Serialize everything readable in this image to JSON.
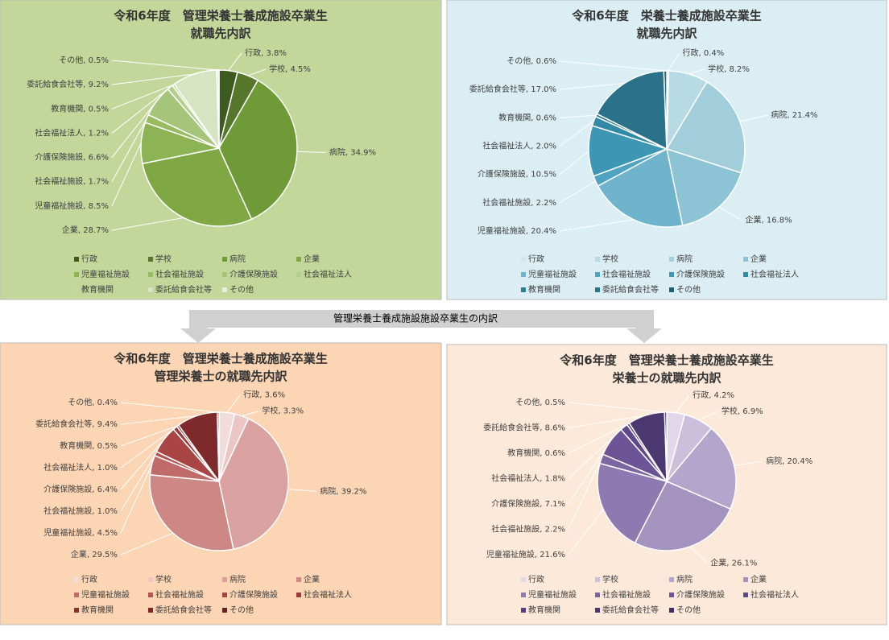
{
  "connector_label": "管理栄養士養成施設施設卒業生の内訳",
  "chart_data": [
    {
      "type": "pie",
      "title": "令和6年度　管理栄養士養成施設卒業生",
      "subtitle": "就職先内訳",
      "background": "#c4d79b",
      "categories": [
        "行政",
        "学校",
        "病院",
        "企業",
        "児童福祉施設",
        "社会福祉施設",
        "介護保険施設",
        "社会福祉法人",
        "教育機関",
        "委託給食会社等",
        "その他"
      ],
      "values": [
        3.8,
        4.5,
        34.9,
        28.7,
        8.5,
        1.7,
        6.6,
        1.2,
        0.5,
        9.2,
        0.5
      ],
      "value_labels": [
        "行政, 3.8%",
        "学校, 4.5%",
        "病院, 34.9%",
        "企業, 28.7%",
        "児童福祉施設, 8.5%",
        "社会福祉施設, 1.7%",
        "介護保険施設, 6.6%",
        "社会福祉法人, 1.2%",
        "教育機関, 0.5%",
        "委託給食会社等, 9.2%",
        "その他, 0.5%"
      ],
      "colors": [
        "#3d5a1f",
        "#56772b",
        "#6f9a38",
        "#7fa845",
        "#8cb455",
        "#98bb60",
        "#a5c57a",
        "#b3cd8d",
        "#c3d8a5",
        "#d6e4c1",
        "#e7efdc"
      ]
    },
    {
      "type": "pie",
      "title": "令和6年度　栄養士養成施設卒業生",
      "subtitle": "就職先内訳",
      "background": "#dbeef3",
      "categories": [
        "行政",
        "学校",
        "病院",
        "企業",
        "児童福祉施設",
        "社会福祉施設",
        "介護保険施設",
        "社会福祉法人",
        "教育機関",
        "委託給食会社等",
        "その他"
      ],
      "values": [
        0.4,
        8.2,
        21.4,
        16.8,
        20.4,
        2.2,
        10.5,
        2.0,
        0.6,
        17.0,
        0.6
      ],
      "value_labels": [
        "行政, 0.4%",
        "学校, 8.2%",
        "病院, 21.4%",
        "企業, 16.8%",
        "児童福祉施設, 20.4%",
        "社会福祉施設, 2.2%",
        "介護保険施設, 10.5%",
        "社会福祉法人, 2.0%",
        "教育機関, 0.6%",
        "委託給食会社等, 17.0%",
        "その他, 0.6%"
      ],
      "colors": [
        "#cfe6ec",
        "#b7dae4",
        "#a2cedc",
        "#8cc3d5",
        "#6fb4cc",
        "#4fa3c0",
        "#3c96b4",
        "#3289a6",
        "#2d7d97",
        "#2b7189",
        "#245f73"
      ]
    },
    {
      "type": "pie",
      "title": "令和6年度　管理栄養士養成施設卒業生",
      "subtitle": "管理栄養士の就職先内訳",
      "background": "#fcd5b4",
      "categories": [
        "行政",
        "学校",
        "病院",
        "企業",
        "児童福祉施設",
        "社会福祉施設",
        "介護保険施設",
        "社会福祉法人",
        "教育機関",
        "委託給食会社等",
        "その他"
      ],
      "values": [
        3.6,
        3.3,
        39.2,
        29.5,
        4.5,
        1.0,
        6.4,
        1.0,
        0.5,
        9.4,
        0.4
      ],
      "value_labels": [
        "行政, 3.6%",
        "学校, 3.3%",
        "病院, 39.2%",
        "企業, 29.5%",
        "児童福祉施設, 4.5%",
        "社会福祉施設, 1.0%",
        "介護保険施設, 6.4%",
        "社会福祉法人, 1.0%",
        "教育機関, 0.5%",
        "委託給食会社等, 9.4%",
        "その他, 0.4%"
      ],
      "colors": [
        "#f2dcdb",
        "#ebc6c5",
        "#d9a1a0",
        "#cd8785",
        "#c06b6a",
        "#b45555",
        "#a94545",
        "#9c3a3a",
        "#8c3131",
        "#7e2a2a",
        "#6b2222"
      ]
    },
    {
      "type": "pie",
      "title": "令和6年度　管理栄養士養成施設卒業生",
      "subtitle": "栄養士の就職先内訳",
      "background": "#fde9d9",
      "categories": [
        "行政",
        "学校",
        "病院",
        "企業",
        "児童福祉施設",
        "社会福祉施設",
        "介護保険施設",
        "社会福祉法人",
        "教育機関",
        "委託給食会社等",
        "その他"
      ],
      "values": [
        4.2,
        6.9,
        20.4,
        26.1,
        21.6,
        2.2,
        7.1,
        1.8,
        0.6,
        8.6,
        0.5
      ],
      "value_labels": [
        "行政, 4.2%",
        "学校, 6.9%",
        "病院, 20.4%",
        "企業, 26.1%",
        "児童福祉施設, 21.6%",
        "社会福祉施設, 2.2%",
        "介護保険施設, 7.1%",
        "社会福祉法人, 1.8%",
        "教育機関, 0.6%",
        "委託給食会社等, 8.6%",
        "その他, 0.5%"
      ],
      "colors": [
        "#e0d8ea",
        "#cbbfdc",
        "#b3a5cb",
        "#a593bf",
        "#8f79b1",
        "#7c65a3",
        "#6c5496",
        "#5f4889",
        "#553f7c",
        "#4b3870",
        "#403060"
      ]
    }
  ]
}
